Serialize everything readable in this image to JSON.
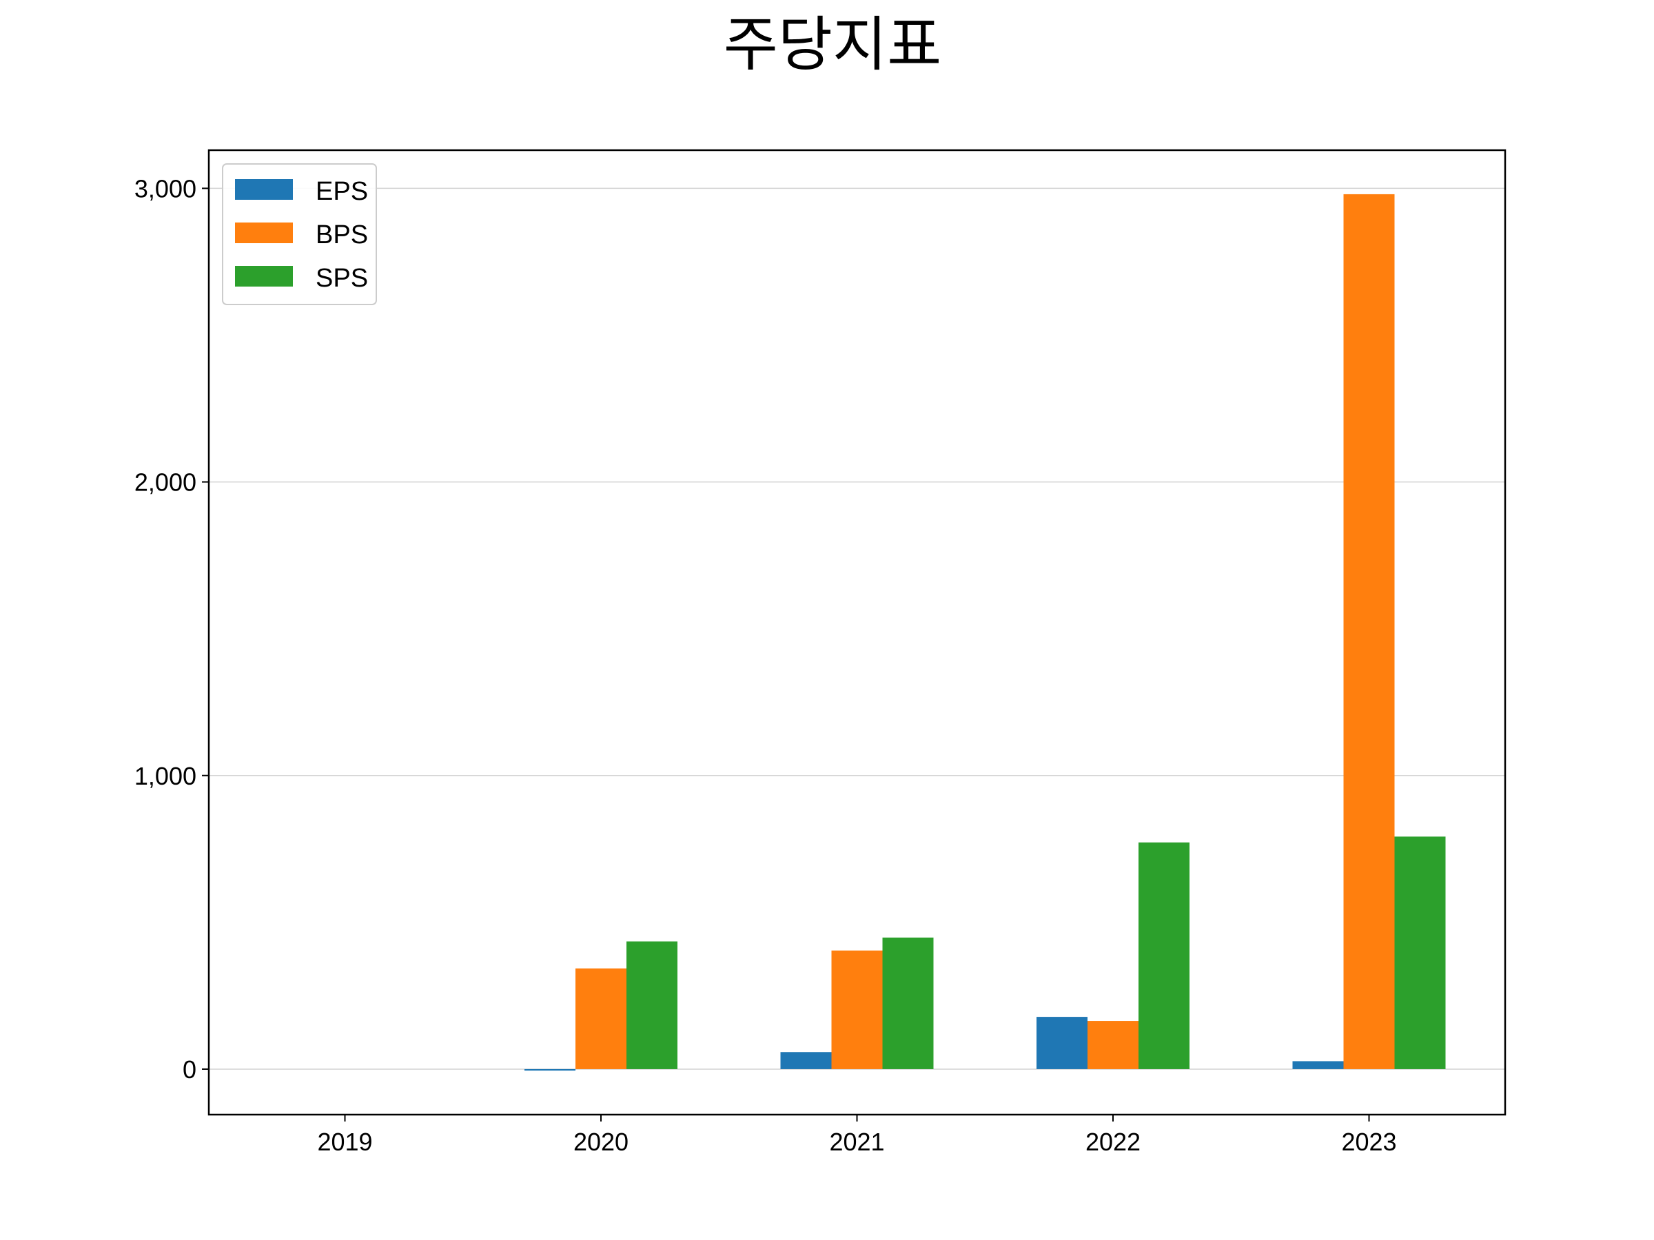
{
  "chart_data": {
    "type": "bar",
    "title": "주당지표",
    "xlabel": "",
    "ylabel": "",
    "categories": [
      "2019",
      "2020",
      "2021",
      "2022",
      "2023"
    ],
    "series": [
      {
        "name": "EPS",
        "color": "#1f77b4",
        "values": [
          0,
          -5,
          58,
          178,
          27
        ]
      },
      {
        "name": "BPS",
        "color": "#ff7f0e",
        "values": [
          0,
          343,
          404,
          164,
          2980
        ]
      },
      {
        "name": "SPS",
        "color": "#2ca02c",
        "values": [
          0,
          435,
          448,
          772,
          792
        ]
      }
    ],
    "ylim": [
      -155,
      3130
    ],
    "yticks": [
      0,
      1000,
      2000,
      3000
    ],
    "ytick_labels": [
      "0",
      "1,000",
      "2,000",
      "3,000"
    ],
    "grid": "y",
    "legend_position": "upper-left"
  }
}
